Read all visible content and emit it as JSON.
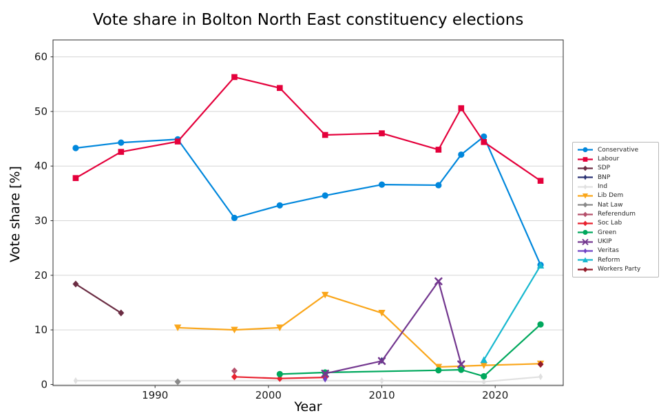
{
  "chart_data": {
    "type": "line",
    "title": "Vote share in Bolton North East constituency elections",
    "xlabel": "Year",
    "ylabel": "Vote share [%]",
    "xlim": [
      1981,
      2026
    ],
    "ylim": [
      -0.2,
      63.1
    ],
    "x_ticks": [
      1990,
      2000,
      2010,
      2020
    ],
    "y_ticks": [
      0,
      10,
      20,
      30,
      40,
      50,
      60
    ],
    "grid": "horizontal",
    "legend_position": "right",
    "series": [
      {
        "name": "Conservative",
        "color": "#0087DC",
        "marker": "circle",
        "points": [
          [
            1983,
            43.3
          ],
          [
            1987,
            44.3
          ],
          [
            1992,
            44.9
          ],
          [
            1997,
            30.5
          ],
          [
            2001,
            32.8
          ],
          [
            2005,
            34.6
          ],
          [
            2010,
            36.6
          ],
          [
            2015,
            36.5
          ],
          [
            2017,
            42.1
          ],
          [
            2019,
            45.4
          ],
          [
            2024,
            21.9
          ]
        ]
      },
      {
        "name": "Labour",
        "color": "#E4003B",
        "marker": "square",
        "points": [
          [
            1983,
            37.8
          ],
          [
            1987,
            42.6
          ],
          [
            1992,
            44.5
          ],
          [
            1997,
            56.3
          ],
          [
            2001,
            54.3
          ],
          [
            2005,
            45.7
          ],
          [
            2010,
            46.0
          ],
          [
            2015,
            43.0
          ],
          [
            2017,
            50.6
          ],
          [
            2019,
            44.4
          ],
          [
            2024,
            37.3
          ]
        ]
      },
      {
        "name": "SDP",
        "color": "#6b2d43",
        "marker": "diamond",
        "points": [
          [
            1983,
            18.4
          ],
          [
            1987,
            13.1
          ]
        ]
      },
      {
        "name": "BNP",
        "color": "#2b3374",
        "marker": "diamond-thin",
        "points": [
          [
            2010,
            4.4
          ]
        ]
      },
      {
        "name": "Ind",
        "color": "#e0e0e0",
        "marker": "diamond-thin",
        "points": [
          [
            1983,
            0.7
          ],
          [
            2010,
            0.7
          ],
          [
            2019,
            0.5
          ],
          [
            2024,
            1.4
          ]
        ]
      },
      {
        "name": "Lib Dem",
        "color": "#FAA61A",
        "marker": "triangle-down",
        "points": [
          [
            1992,
            10.4
          ],
          [
            1997,
            10.0
          ],
          [
            2001,
            10.4
          ],
          [
            2005,
            16.4
          ],
          [
            2010,
            13.1
          ],
          [
            2015,
            3.2
          ],
          [
            2019,
            3.5
          ],
          [
            2024,
            3.8
          ]
        ]
      },
      {
        "name": "Nat Law",
        "color": "#8a8a8a",
        "marker": "diamond",
        "points": [
          [
            1992,
            0.5
          ]
        ]
      },
      {
        "name": "Referendum",
        "color": "#b5506b",
        "marker": "diamond",
        "points": [
          [
            1997,
            2.5
          ]
        ]
      },
      {
        "name": "Soc Lab",
        "color": "#e8212e",
        "marker": "diamond",
        "points": [
          [
            1997,
            1.4
          ],
          [
            2001,
            1.1
          ],
          [
            2005,
            1.3
          ]
        ]
      },
      {
        "name": "Green",
        "color": "#00A85D",
        "marker": "circle",
        "points": [
          [
            2001,
            1.9
          ],
          [
            2005,
            2.2
          ],
          [
            2015,
            2.6
          ],
          [
            2017,
            2.7
          ],
          [
            2019,
            1.5
          ],
          [
            2024,
            11.0
          ]
        ]
      },
      {
        "name": "UKIP",
        "color": "#73378f",
        "marker": "x",
        "points": [
          [
            2005,
            2.0
          ],
          [
            2010,
            4.3
          ],
          [
            2015,
            18.9
          ],
          [
            2017,
            3.7
          ]
        ]
      },
      {
        "name": "Veritas",
        "color": "#6d40c4",
        "marker": "diamond-thin",
        "points": [
          [
            2005,
            1.0
          ]
        ]
      },
      {
        "name": "Reform",
        "color": "#17b8cf",
        "marker": "triangle-up",
        "points": [
          [
            2019,
            4.5
          ],
          [
            2024,
            21.8
          ]
        ]
      },
      {
        "name": "Workers Party",
        "color": "#931b29",
        "marker": "diamond",
        "points": [
          [
            2024,
            3.7
          ]
        ]
      }
    ]
  }
}
